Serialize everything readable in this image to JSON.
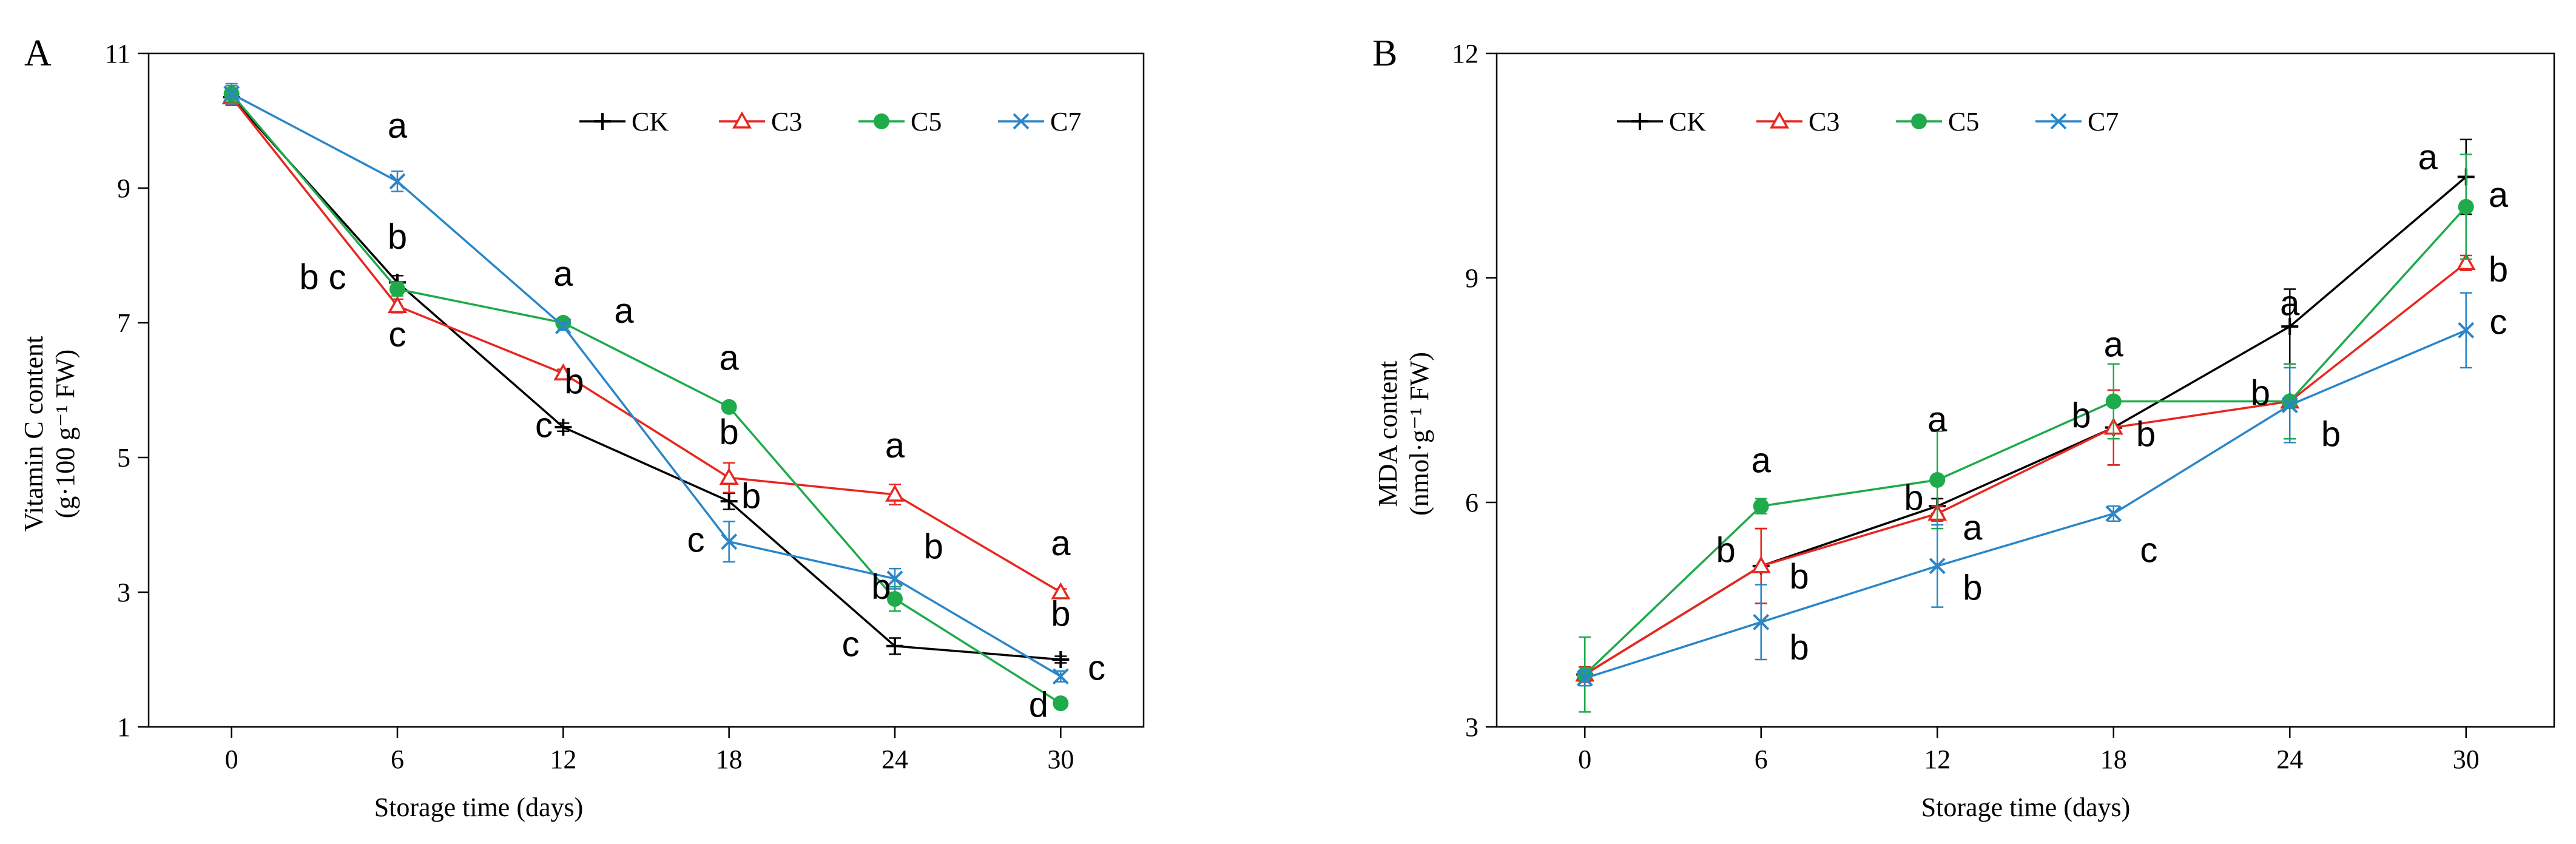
{
  "colors": {
    "CK": "#000000",
    "C3": "#e8261f",
    "C5": "#1faa4b",
    "C7": "#2a86c8",
    "axis": "#000000"
  },
  "chart_data": [
    {
      "type": "line",
      "panel": "A",
      "xlabel": "Storage time (days)",
      "ylabel_line1": "Vitamin C content",
      "ylabel_line2": "(g·100 g⁻¹ FW)",
      "x": [
        0,
        6,
        12,
        18,
        24,
        30
      ],
      "xticks": [
        "0",
        "6",
        "12",
        "18",
        "24",
        "30"
      ],
      "yticks": [
        "1",
        "3",
        "5",
        "7",
        "9",
        "11"
      ],
      "xlim": [
        -3,
        33
      ],
      "ylim": [
        1,
        11
      ],
      "legend_position": "top-right",
      "series": [
        {
          "name": "CK",
          "marker": "plus",
          "values": [
            10.35,
            7.6,
            5.45,
            4.35,
            2.2,
            2.0
          ],
          "errors": [
            0.12,
            0.1,
            0.06,
            0.12,
            0.12,
            0.05
          ]
        },
        {
          "name": "C3",
          "marker": "triangle",
          "values": [
            10.35,
            7.25,
            6.25,
            4.7,
            4.45,
            3.0
          ],
          "errors": [
            0.12,
            0.1,
            0.06,
            0.22,
            0.15,
            0.05
          ]
        },
        {
          "name": "C5",
          "marker": "circle",
          "values": [
            10.4,
            7.5,
            7.0,
            5.75,
            2.9,
            1.35
          ],
          "errors": [
            0.12,
            0.1,
            0.06,
            0.06,
            0.18,
            0.05
          ]
        },
        {
          "name": "C7",
          "marker": "x",
          "values": [
            10.4,
            9.1,
            6.95,
            3.75,
            3.2,
            1.75
          ],
          "errors": [
            0.15,
            0.15,
            0.06,
            0.3,
            0.15,
            0.08
          ]
        }
      ],
      "annotations": [
        {
          "text": "a",
          "x": 6,
          "y": 9.75
        },
        {
          "text": "b",
          "x": 6,
          "y": 8.1
        },
        {
          "text": "b c",
          "x": 3.3,
          "y": 7.5
        },
        {
          "text": "c",
          "x": 6,
          "y": 6.65
        },
        {
          "text": "a",
          "x": 12,
          "y": 7.55
        },
        {
          "text": "a",
          "x": 14.2,
          "y": 7.0
        },
        {
          "text": "b",
          "x": 12.4,
          "y": 5.95
        },
        {
          "text": "c",
          "x": 11.3,
          "y": 5.3
        },
        {
          "text": "a",
          "x": 18,
          "y": 6.3
        },
        {
          "text": "b",
          "x": 18,
          "y": 5.2
        },
        {
          "text": "b",
          "x": 18.8,
          "y": 4.25
        },
        {
          "text": "c",
          "x": 16.8,
          "y": 3.6
        },
        {
          "text": "a",
          "x": 24,
          "y": 5.0
        },
        {
          "text": "b",
          "x": 25.4,
          "y": 3.5
        },
        {
          "text": "b",
          "x": 23.5,
          "y": 2.9
        },
        {
          "text": "c",
          "x": 22.4,
          "y": 2.05
        },
        {
          "text": "a",
          "x": 30,
          "y": 3.55
        },
        {
          "text": "b",
          "x": 30,
          "y": 2.5
        },
        {
          "text": "c",
          "x": 31.3,
          "y": 1.7
        },
        {
          "text": "d",
          "x": 29.2,
          "y": 1.15
        }
      ]
    },
    {
      "type": "line",
      "panel": "B",
      "xlabel": "Storage time (days)",
      "ylabel_line1": "MDA content",
      "ylabel_line2": "(nmol·g⁻¹ FW)",
      "x": [
        0,
        6,
        12,
        18,
        24,
        30
      ],
      "xticks": [
        "0",
        "6",
        "12",
        "18",
        "24",
        "30"
      ],
      "yticks": [
        "3",
        "6",
        "9",
        "12"
      ],
      "xlim": [
        -3,
        33
      ],
      "ylim": [
        3,
        12
      ],
      "legend_position": "top-left",
      "series": [
        {
          "name": "CK",
          "marker": "plus",
          "values": [
            3.7,
            5.15,
            5.95,
            7.0,
            8.35,
            10.35
          ],
          "errors": [
            0.1,
            0.5,
            0.1,
            0.5,
            0.5,
            0.5
          ]
        },
        {
          "name": "C3",
          "marker": "triangle",
          "values": [
            3.7,
            5.15,
            5.85,
            7.0,
            7.35,
            9.2
          ],
          "errors": [
            0.1,
            0.5,
            0.1,
            0.5,
            0.5,
            0.1
          ]
        },
        {
          "name": "C5",
          "marker": "circle",
          "values": [
            3.7,
            5.95,
            6.3,
            7.35,
            7.35,
            9.95
          ],
          "errors": [
            0.5,
            0.1,
            0.65,
            0.5,
            0.5,
            0.7
          ]
        },
        {
          "name": "C7",
          "marker": "x",
          "values": [
            3.65,
            4.4,
            5.15,
            5.85,
            7.3,
            8.3
          ],
          "errors": [
            0.1,
            0.5,
            0.55,
            0.1,
            0.5,
            0.5
          ]
        }
      ],
      "annotations": [
        {
          "text": "a",
          "x": 6,
          "y": 6.4
        },
        {
          "text": "b",
          "x": 4.8,
          "y": 5.2
        },
        {
          "text": "b",
          "x": 7.3,
          "y": 4.85
        },
        {
          "text": "b",
          "x": 7.3,
          "y": 3.9
        },
        {
          "text": "a",
          "x": 12,
          "y": 6.95
        },
        {
          "text": "b",
          "x": 11.2,
          "y": 5.9
        },
        {
          "text": "a",
          "x": 13.2,
          "y": 5.5
        },
        {
          "text": "b",
          "x": 13.2,
          "y": 4.7
        },
        {
          "text": "a",
          "x": 18,
          "y": 7.95
        },
        {
          "text": "b",
          "x": 16.9,
          "y": 7.0
        },
        {
          "text": "b",
          "x": 19.1,
          "y": 6.75
        },
        {
          "text": "c",
          "x": 19.2,
          "y": 5.2
        },
        {
          "text": "a",
          "x": 24,
          "y": 8.5
        },
        {
          "text": "b",
          "x": 23.0,
          "y": 7.3
        },
        {
          "text": "b",
          "x": 25.4,
          "y": 6.75
        },
        {
          "text": "a",
          "x": 28.7,
          "y": 10.45
        },
        {
          "text": "a",
          "x": 31.1,
          "y": 9.95
        },
        {
          "text": "b",
          "x": 31.1,
          "y": 8.95
        },
        {
          "text": "c",
          "x": 31.1,
          "y": 8.25
        }
      ]
    }
  ]
}
